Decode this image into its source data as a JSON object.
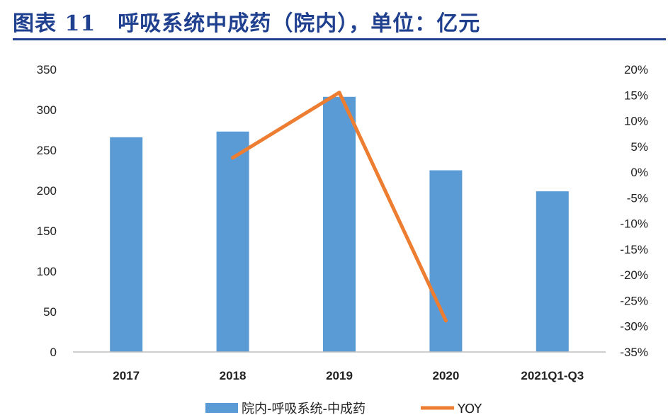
{
  "figure": {
    "title": "图表 11　呼吸系统中成药（院内），单位：亿元"
  },
  "colors": {
    "title": "#1f3f8f",
    "bar": "#5b9bd5",
    "line": "#ed7d31"
  },
  "chart_data": {
    "type": "bar",
    "categories": [
      "2017",
      "2018",
      "2019",
      "2020",
      "2021Q1-Q3"
    ],
    "series": [
      {
        "name": "院内-呼吸系统-中成药",
        "type": "bar",
        "axis": "left",
        "values": [
          266,
          273,
          316,
          225,
          199
        ]
      },
      {
        "name": "YOY",
        "type": "line",
        "axis": "right",
        "values": [
          null,
          2.8,
          15.5,
          -28.9,
          null
        ]
      }
    ],
    "y_left": {
      "min": 0,
      "max": 350,
      "step": 50,
      "ticks": [
        "0",
        "50",
        "100",
        "150",
        "200",
        "250",
        "300",
        "350"
      ]
    },
    "y_right": {
      "min": -35,
      "max": 20,
      "step": 5,
      "ticks": [
        "-35%",
        "-30%",
        "-25%",
        "-20%",
        "-15%",
        "-10%",
        "-5%",
        "0%",
        "5%",
        "10%",
        "15%",
        "20%"
      ]
    },
    "grid": false,
    "legend_position": "bottom"
  }
}
